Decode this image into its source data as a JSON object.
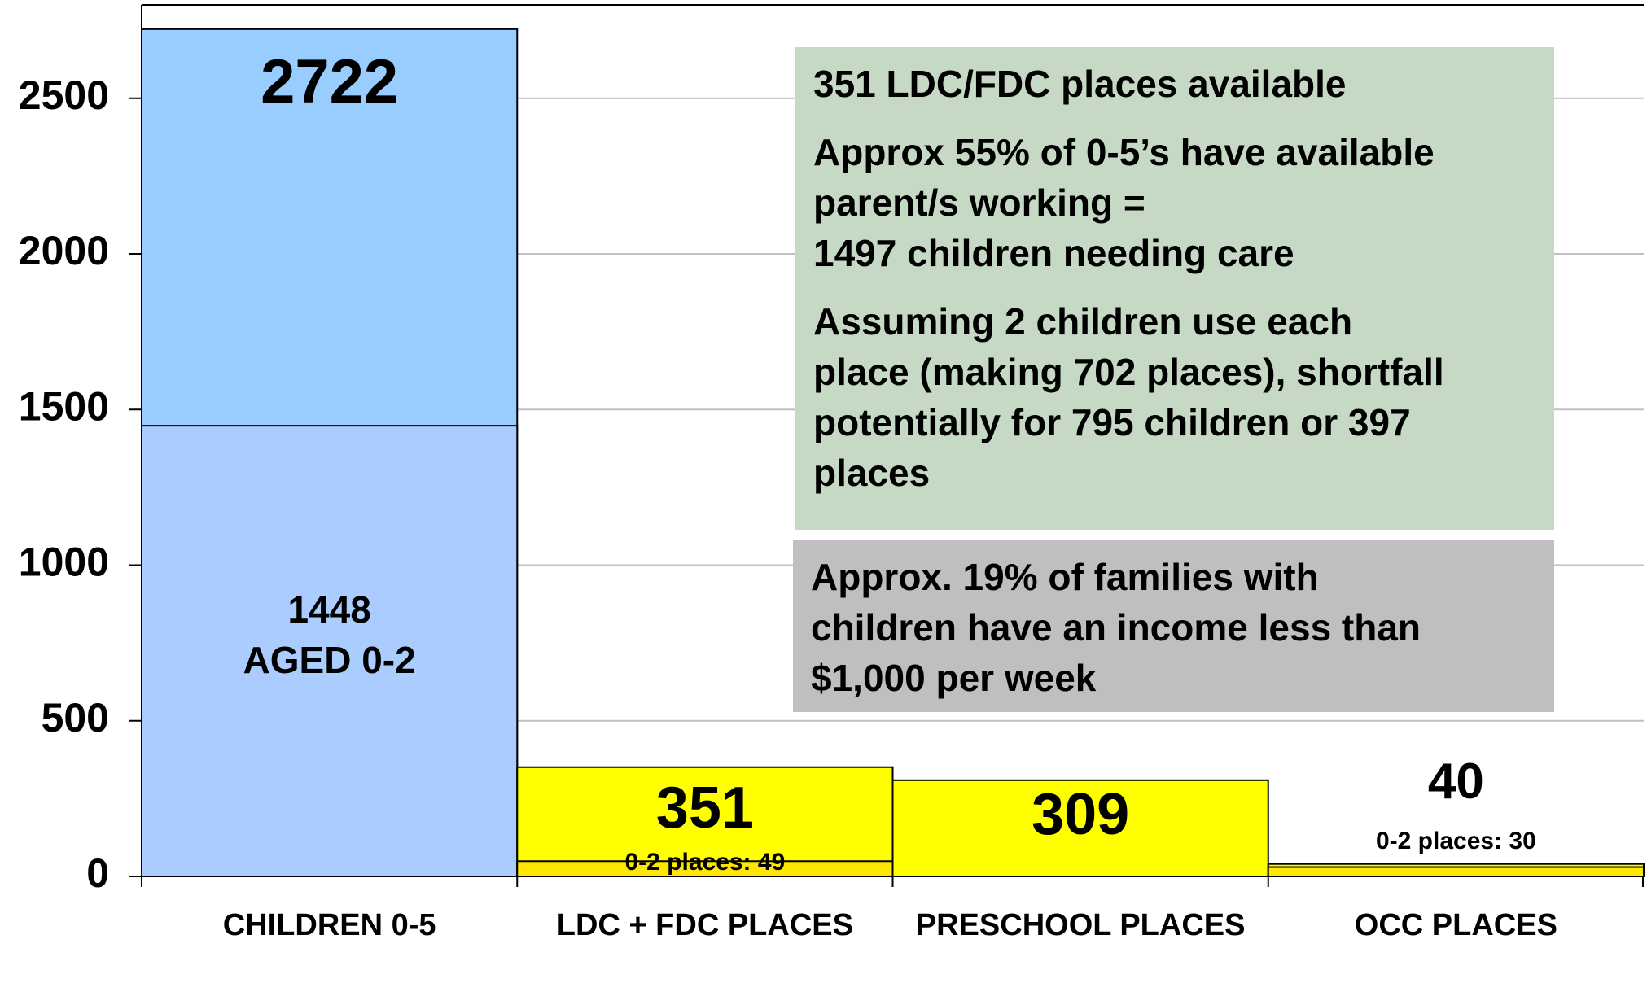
{
  "chart_data": {
    "type": "bar",
    "categories": [
      "CHILDREN 0-5",
      "LDC + FDC PLACES",
      "PRESCHOOL PLACES",
      "OCC PLACES"
    ],
    "series": [
      {
        "values": [
          2722,
          351,
          309,
          40
        ],
        "colors": [
          "#99ccff",
          "#ffff00",
          "#ffff00",
          "#ffff00"
        ]
      },
      {
        "values": [
          1448,
          49,
          null,
          30
        ],
        "colors": [
          "#aaccff",
          "#ffe600",
          null,
          "#ffe600"
        ],
        "value_labels": [
          "1448\nAGED 0-2",
          "0-2 places: 49",
          null,
          "0-2 places: 30"
        ]
      }
    ],
    "ylim": [
      0,
      2800
    ],
    "yticks": [
      0,
      500,
      1000,
      1500,
      2000,
      2500
    ],
    "grid": true,
    "annotations": [
      {
        "color": "#c6d9c4",
        "paragraphs": [
          [
            "351 LDC/FDC places available"
          ],
          [
            "Approx 55% of 0-5’s have available",
            "parent/s working =",
            "1497 children needing care"
          ],
          [
            "Assuming 2 children use each",
            "place (making 702 places), shortfall",
            "potentially for 795 children or 397",
            "places"
          ]
        ]
      },
      {
        "color": "#bfbfbf",
        "paragraphs": [
          [
            "Approx. 19% of families with",
            "children have an income less than",
            "$1,000 per week"
          ]
        ]
      }
    ]
  }
}
